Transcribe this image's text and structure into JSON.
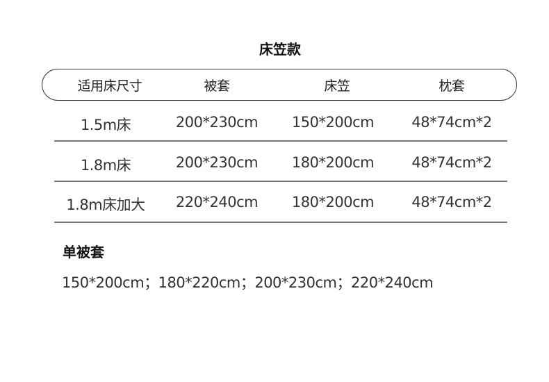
{
  "title": "床笠款",
  "table": {
    "headers": [
      "适用床尺寸",
      "被套",
      "床笠",
      "枕套"
    ],
    "rows": [
      [
        "1.5m床",
        "200*230cm",
        "150*200cm",
        "48*74cm*2"
      ],
      [
        "1.8m床",
        "200*230cm",
        "180*200cm",
        "48*74cm*2"
      ],
      [
        "1.8m床加大",
        "220*240cm",
        "180*200cm",
        "48*74cm*2"
      ]
    ]
  },
  "single_duvet": {
    "title": "单被套",
    "sizes": "150*200cm；180*220cm；200*230cm；220*240cm"
  }
}
